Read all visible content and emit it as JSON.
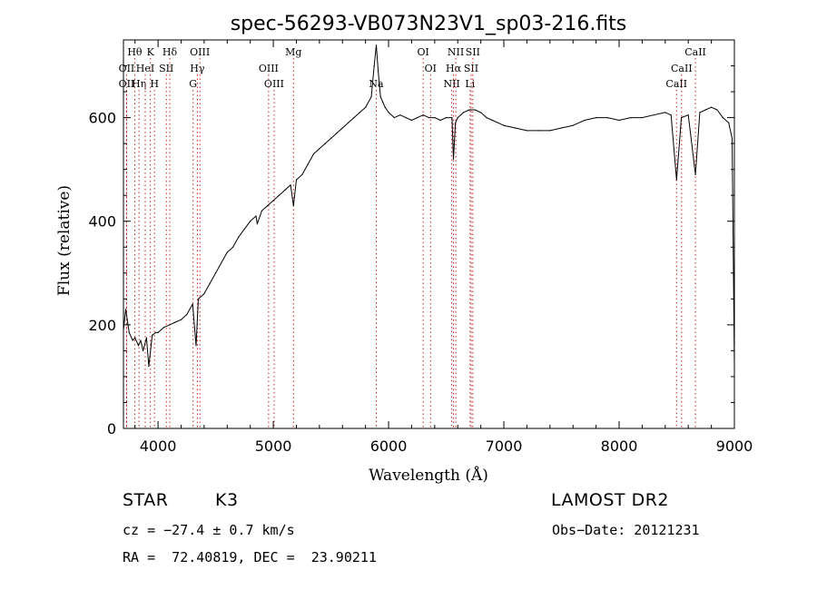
{
  "chart_data": {
    "type": "line",
    "title": "spec-56293-VB073N23V1_sp03-216.fits",
    "xlabel": "Wavelength (Å)",
    "ylabel": "Flux (relative)",
    "xlim": [
      3700,
      9000
    ],
    "ylim": [
      0,
      750
    ],
    "x_ticks": [
      "4000",
      "5000",
      "6000",
      "7000",
      "8000",
      "9000"
    ],
    "y_ticks": [
      "0",
      "200",
      "400",
      "600"
    ],
    "grid": false,
    "line_color": "#000000",
    "marker_color": "#cc2222",
    "series": [
      {
        "x": [
          3700,
          3720,
          3750,
          3780,
          3800,
          3830,
          3850,
          3870,
          3900,
          3920,
          3950,
          3980,
          4000,
          4050,
          4100,
          4150,
          4200,
          4250,
          4300,
          4330,
          4350,
          4400,
          4450,
          4500,
          4550,
          4600,
          4650,
          4700,
          4750,
          4800,
          4850,
          4861,
          4900,
          4950,
          5000,
          5050,
          5100,
          5150,
          5175,
          5200,
          5250,
          5300,
          5350,
          5400,
          5450,
          5500,
          5550,
          5600,
          5650,
          5700,
          5750,
          5800,
          5850,
          5875,
          5893,
          5910,
          5930,
          5950,
          5970,
          6000,
          6050,
          6100,
          6150,
          6200,
          6250,
          6300,
          6350,
          6400,
          6450,
          6500,
          6550,
          6563,
          6580,
          6600,
          6650,
          6700,
          6750,
          6800,
          6850,
          6900,
          6950,
          7000,
          7100,
          7200,
          7300,
          7400,
          7500,
          7600,
          7700,
          7800,
          7900,
          8000,
          8100,
          8200,
          8300,
          8400,
          8450,
          8498,
          8540,
          8600,
          8662,
          8700,
          8750,
          8800,
          8850,
          8900,
          8950,
          8980,
          9000
        ],
        "y": [
          190,
          230,
          185,
          170,
          175,
          160,
          170,
          150,
          175,
          120,
          180,
          185,
          185,
          195,
          200,
          205,
          210,
          220,
          240,
          160,
          250,
          260,
          280,
          300,
          320,
          340,
          350,
          370,
          385,
          400,
          410,
          395,
          420,
          430,
          440,
          450,
          460,
          470,
          430,
          480,
          490,
          510,
          530,
          540,
          550,
          560,
          570,
          580,
          590,
          600,
          610,
          620,
          640,
          700,
          740,
          690,
          640,
          630,
          620,
          610,
          600,
          605,
          600,
          595,
          600,
          605,
          600,
          600,
          595,
          600,
          600,
          520,
          590,
          600,
          610,
          615,
          615,
          610,
          600,
          595,
          590,
          585,
          580,
          575,
          575,
          575,
          580,
          585,
          595,
          600,
          600,
          595,
          600,
          600,
          605,
          610,
          605,
          480,
          600,
          605,
          490,
          610,
          615,
          620,
          615,
          600,
          590,
          560,
          120
        ]
      }
    ],
    "line_markers": [
      {
        "x": 3727,
        "label": "OII",
        "row": 1
      },
      {
        "x": 3727,
        "label": "OII",
        "row": 2
      },
      {
        "x": 3798,
        "label": "Hθ",
        "row": 0
      },
      {
        "x": 3835,
        "label": "Hη",
        "row": 2
      },
      {
        "x": 3889,
        "label": "HeI",
        "row": 1
      },
      {
        "x": 3934,
        "label": "K",
        "row": 0
      },
      {
        "x": 3969,
        "label": "H",
        "row": 2
      },
      {
        "x": 4072,
        "label": "SII",
        "row": 1
      },
      {
        "x": 4102,
        "label": "Hδ",
        "row": 0
      },
      {
        "x": 4304,
        "label": "G",
        "row": 2
      },
      {
        "x": 4341,
        "label": "Hγ",
        "row": 1
      },
      {
        "x": 4363,
        "label": "OIII",
        "row": 0
      },
      {
        "x": 4959,
        "label": "OIII",
        "row": 1
      },
      {
        "x": 5007,
        "label": "OIII",
        "row": 2
      },
      {
        "x": 5175,
        "label": "Mg",
        "row": 0
      },
      {
        "x": 5893,
        "label": "Na",
        "row": 2
      },
      {
        "x": 6300,
        "label": "OI",
        "row": 0
      },
      {
        "x": 6364,
        "label": "OI",
        "row": 1
      },
      {
        "x": 6548,
        "label": "NII",
        "row": 2
      },
      {
        "x": 6563,
        "label": "Hα",
        "row": 1
      },
      {
        "x": 6583,
        "label": "NII",
        "row": 0
      },
      {
        "x": 6707,
        "label": "Li",
        "row": 2
      },
      {
        "x": 6716,
        "label": "SII",
        "row": 1
      },
      {
        "x": 6731,
        "label": "SII",
        "row": 0
      },
      {
        "x": 8498,
        "label": "CaII",
        "row": 2
      },
      {
        "x": 8542,
        "label": "CaII",
        "row": 1
      },
      {
        "x": 8662,
        "label": "CaII",
        "row": 0
      }
    ]
  },
  "info": {
    "object_class": "STAR",
    "subclass": "K3",
    "survey": "LAMOST DR2",
    "velocity": "cz = −27.4 ± 0.7 km/s",
    "obs_date": "Obs−Date: 20121231",
    "coords": "RA =  72.40819, DEC =  23.90211"
  }
}
